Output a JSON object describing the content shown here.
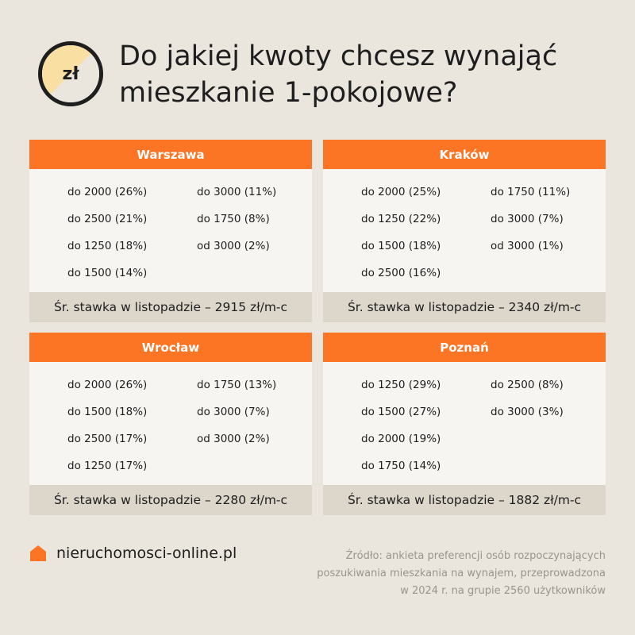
{
  "header": {
    "badge_label": "zł",
    "title_line1": "Do jakiej kwoty chcesz wynająć",
    "title_line2": "mieszkanie 1-pokojowe?"
  },
  "cards": [
    {
      "city": "Warszawa",
      "items": [
        "do 2000 (26%)",
        "do 3000 (11%)",
        "do 2500 (21%)",
        "do 1750 (8%)",
        "do 1250 (18%)",
        "od 3000 (2%)",
        "do 1500 (14%)"
      ],
      "footer": "Śr. stawka w listopadzie – 2915 zł/m-c"
    },
    {
      "city": "Kraków",
      "items": [
        "do 2000 (25%)",
        "do 1750 (11%)",
        "do 1250 (22%)",
        "do 3000 (7%)",
        "do 1500 (18%)",
        "od 3000 (1%)",
        "do 2500 (16%)"
      ],
      "footer": "Śr. stawka w listopadzie – 2340 zł/m-c"
    },
    {
      "city": "Wrocław",
      "items": [
        "do 2000 (26%)",
        "do 1750 (13%)",
        "do 1500 (18%)",
        "do 3000 (7%)",
        "do 2500 (17%)",
        "od 3000 (2%)",
        "do 1250 (17%)"
      ],
      "footer": "Śr. stawka w listopadzie – 2280 zł/m-c"
    },
    {
      "city": "Poznań",
      "items": [
        "do 1250 (29%)",
        "do 2500 (8%)",
        "do 1500 (27%)",
        "do 3000 (3%)",
        "do 2000 (19%)",
        "",
        "do 1750 (14%)"
      ],
      "footer": "Śr. stawka w listopadzie – 1882 zł/m-c"
    }
  ],
  "footer": {
    "logo_icon": "house-icon",
    "site": "nieruchomosci-online.pl",
    "source_line1": "Źródło: ankieta preferencji osób rozpoczynających",
    "source_line2": "poszukiwania mieszkania na wynajem, przeprowadzona",
    "source_line3": "w 2024 r. na grupie 2560 użytkowników"
  },
  "colors": {
    "accent": "#fb7524",
    "background": "#ebe6dd",
    "card_body": "#f7f5f2",
    "card_footer": "#dcd6cb",
    "badge_fill": "#f9dfa1"
  }
}
